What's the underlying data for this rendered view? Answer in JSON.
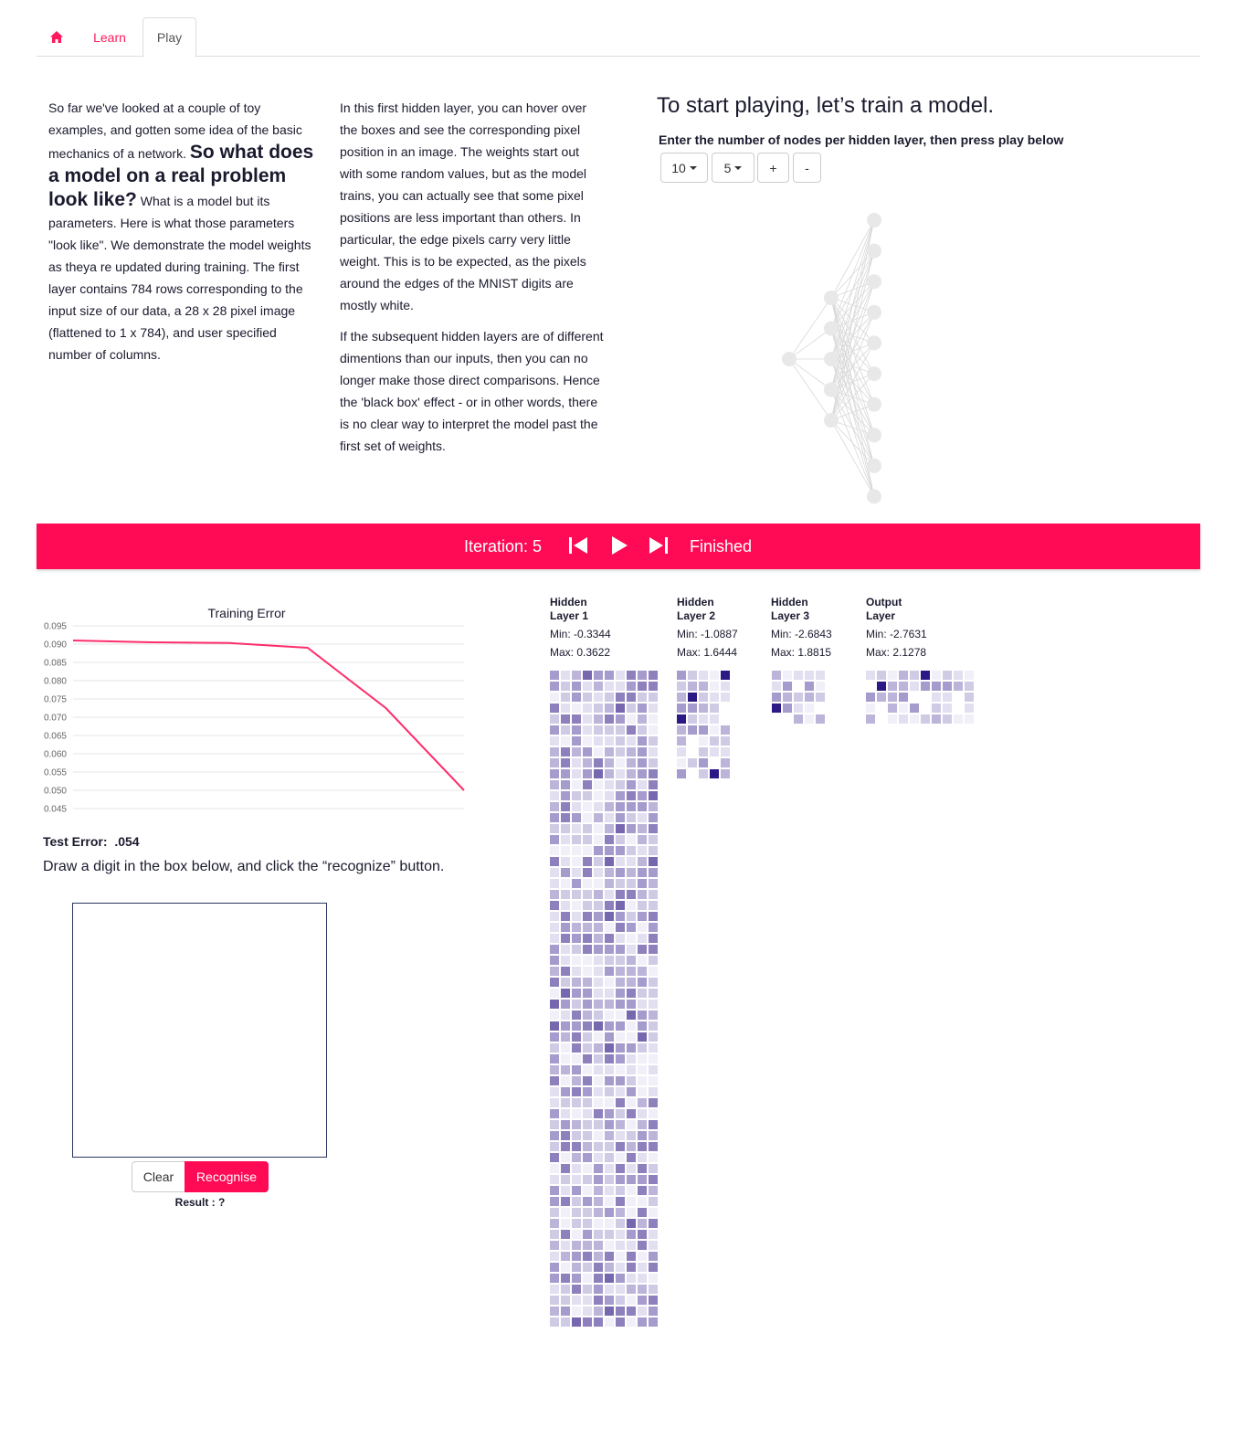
{
  "tabs": {
    "home_icon": "home-icon",
    "learn": "Learn",
    "play": "Play"
  },
  "intro": {
    "p1_a": "So far we've looked at a couple of toy examples, and gotten some idea of the basic mechanics of a network.",
    "p1_big": "So what does a model on a real problem look like?",
    "p1_b": "What is a model but its parameters. Here is what those parameters \"look like\". We demonstrate the model weights as theya re updated during training. The first layer contains 784 rows corresponding to the input size of our data, a 28 x 28 pixel image (flattened to 1 x 784), and user specified number of columns.",
    "p2": "In this first hidden layer, you can hover over the boxes and see the corresponding pixel position in an image. The weights start out with some random values, but as the model trains, you can actually see that some pixel positions are less important than others. In particular, the edge pixels carry very little weight. This is to be expected, as the pixels around the edges of the MNIST digits are mostly white.",
    "p3": "If the subsequent hidden layers are of different dimentions than our inputs, then you can no longer make those direct comparisons. Hence the 'black box' effect - or in other words, there is no clear way to interpret the model past the first set of weights."
  },
  "play": {
    "title": "To start playing, let’s train a model.",
    "subtitle": "Enter the number of nodes per hidden layer, then press play below",
    "layer1_nodes": "10",
    "layer2_nodes": "5",
    "add_label": "+",
    "remove_label": "-"
  },
  "network": {
    "layer_sizes": [
      1,
      5,
      10
    ]
  },
  "playbar": {
    "iteration": "Iteration: 5",
    "status": "Finished",
    "color": "#ff0a54"
  },
  "chart_data": {
    "type": "line",
    "title": "Training Error",
    "xlabel": "",
    "ylabel": "",
    "x": [
      0,
      1,
      2,
      3,
      4,
      5
    ],
    "y": [
      0.091,
      0.0905,
      0.0903,
      0.089,
      0.0725,
      0.05
    ],
    "ylim": [
      0.045,
      0.095
    ],
    "yticks": [
      "0.095",
      "0.090",
      "0.085",
      "0.080",
      "0.075",
      "0.070",
      "0.065",
      "0.060",
      "0.055",
      "0.050",
      "0.045"
    ],
    "grid": true,
    "color": "#ff2d6b"
  },
  "test": {
    "label": "Test Error:",
    "value": ".054"
  },
  "draw": {
    "instruction": "Draw a digit in the box below, and click the “recognize” button.",
    "clear": "Clear",
    "recognise": "Recognise",
    "result": "Result : ?"
  },
  "layers": [
    {
      "name_1": "Hidden",
      "name_2": "Layer 1",
      "min": "Min: -0.3344",
      "max": "Max: 0.3622",
      "cols": 10,
      "rows": 60
    },
    {
      "name_1": "Hidden",
      "name_2": "Layer 2",
      "min": "Min: -1.0887",
      "max": "Max: 1.6444",
      "cols": 5,
      "rows": 10
    },
    {
      "name_1": "Hidden",
      "name_2": "Layer 3",
      "min": "Min: -2.6843",
      "max": "Max: 1.8815",
      "cols": 5,
      "rows": 5
    },
    {
      "name_1": "Output",
      "name_2": "Layer",
      "min": "Min: -2.7631",
      "max": "Max: 2.1278",
      "cols": 10,
      "rows": 5
    }
  ]
}
